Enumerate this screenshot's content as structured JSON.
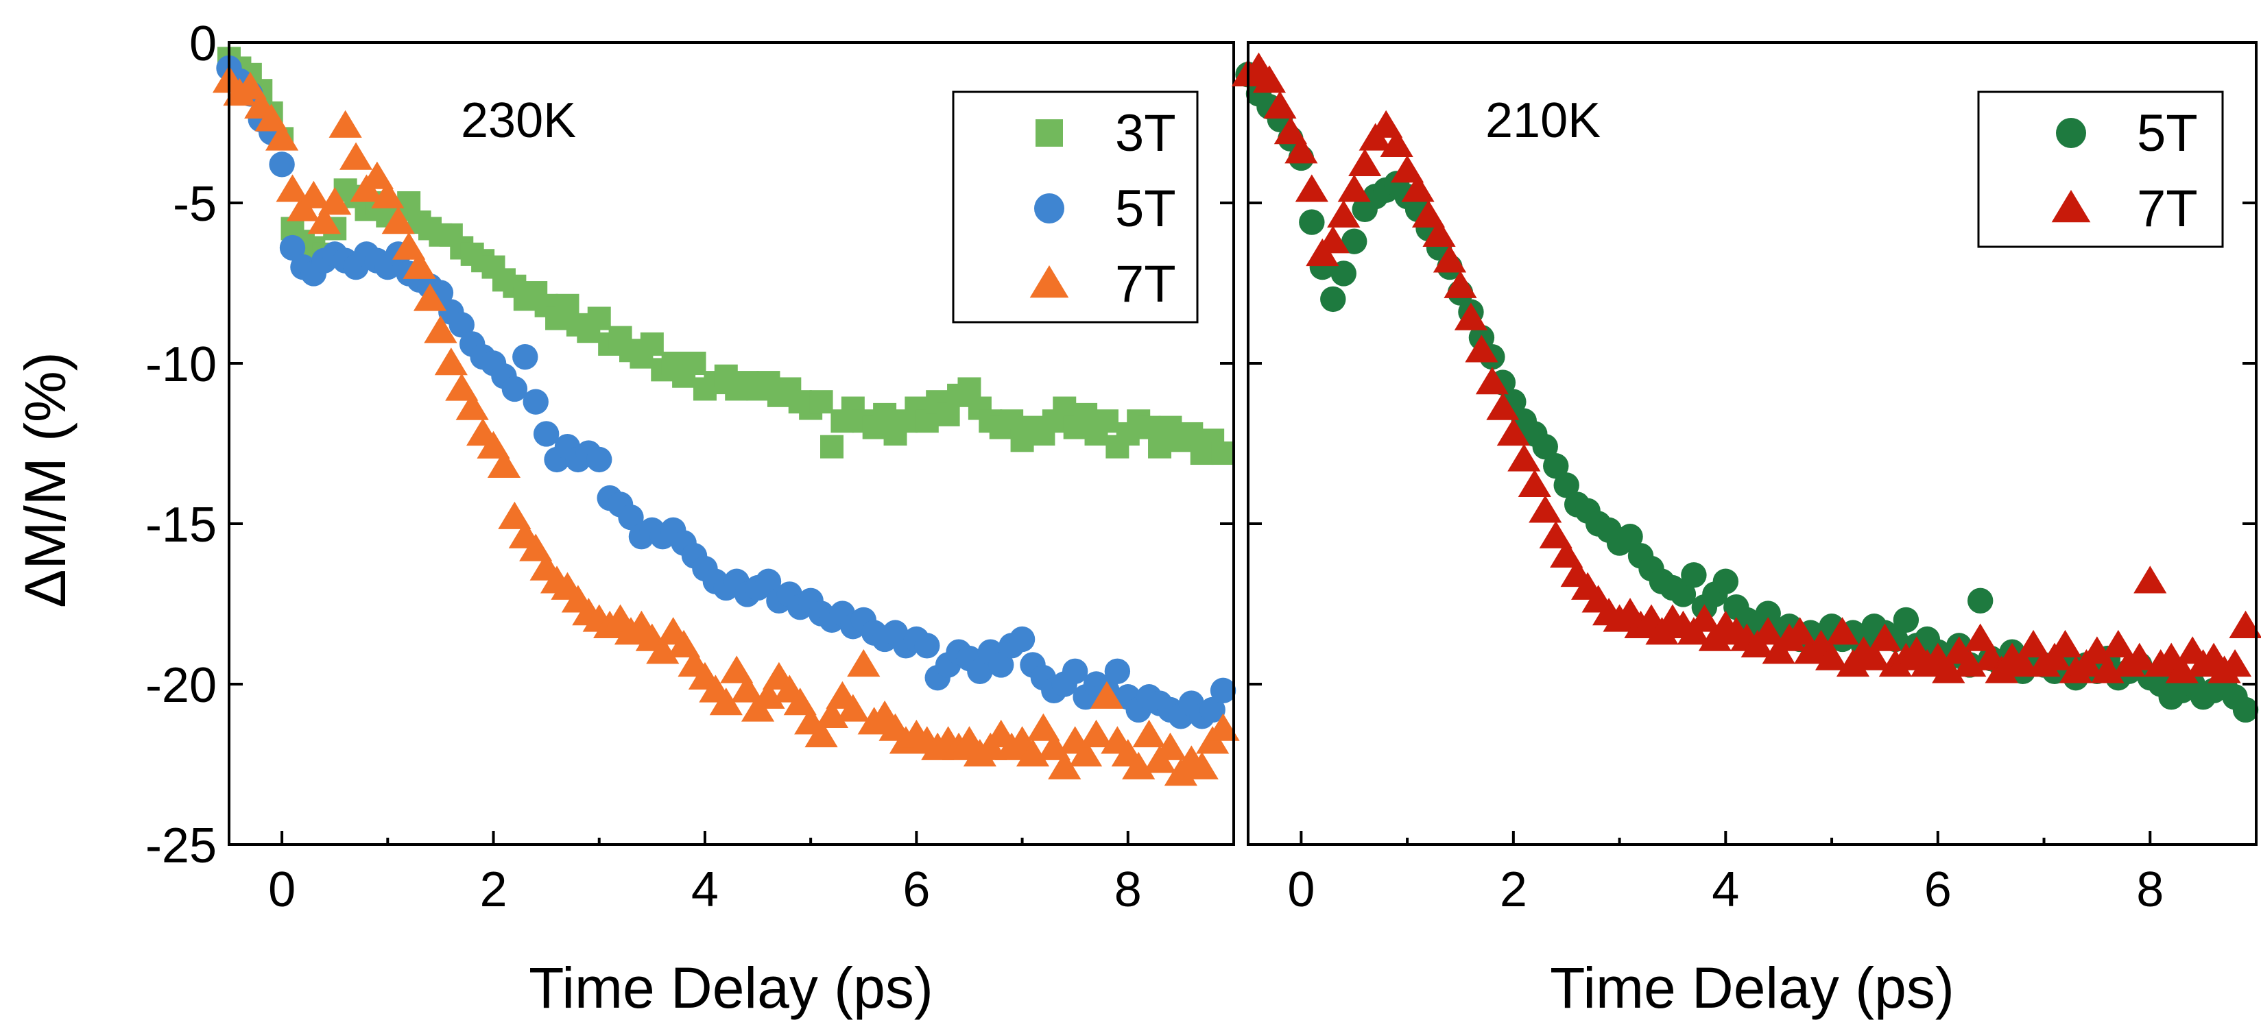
{
  "figure": {
    "shared_ylabel": "ΔM/M (%)"
  },
  "chart_data": [
    {
      "type": "scatter",
      "panel": "left",
      "title": "230K",
      "xlabel": "Time Delay (ps)",
      "ylabel": "ΔM/M (%)",
      "xlim": [
        -0.5,
        9.0
      ],
      "ylim": [
        -25,
        0
      ],
      "xticks": [
        0,
        2,
        4,
        6,
        8
      ],
      "xtick_labels": [
        "0",
        "2",
        "4",
        "6",
        "8"
      ],
      "yticks": [
        0,
        -5,
        -10,
        -15,
        -20,
        -25
      ],
      "ytick_labels": [
        "0",
        "-5",
        "-10",
        "-15",
        "-20",
        "-25"
      ],
      "legend_position": "top-right",
      "series": [
        {
          "name": "3T",
          "marker": "square",
          "color": "#72b95c",
          "x": [
            -0.5,
            -0.4,
            -0.3,
            -0.2,
            -0.1,
            0.0,
            0.1,
            0.2,
            0.3,
            0.4,
            0.5,
            0.6,
            0.7,
            0.8,
            0.9,
            1.0,
            1.1,
            1.2,
            1.3,
            1.4,
            1.5,
            1.6,
            1.7,
            1.8,
            1.9,
            2.0,
            2.1,
            2.2,
            2.3,
            2.4,
            2.5,
            2.6,
            2.7,
            2.8,
            2.9,
            3.0,
            3.1,
            3.2,
            3.3,
            3.4,
            3.5,
            3.6,
            3.7,
            3.8,
            3.9,
            4.0,
            4.1,
            4.2,
            4.3,
            4.4,
            4.5,
            4.6,
            4.7,
            4.8,
            4.9,
            5.0,
            5.1,
            5.2,
            5.3,
            5.4,
            5.5,
            5.6,
            5.7,
            5.8,
            5.9,
            6.0,
            6.1,
            6.2,
            6.3,
            6.4,
            6.5,
            6.6,
            6.7,
            6.8,
            6.9,
            7.0,
            7.1,
            7.2,
            7.3,
            7.4,
            7.5,
            7.6,
            7.7,
            7.8,
            7.9,
            8.0,
            8.1,
            8.2,
            8.3,
            8.4,
            8.5,
            8.6,
            8.7,
            8.8,
            8.9
          ],
          "y": [
            -0.5,
            -0.8,
            -1.0,
            -1.5,
            -2.2,
            -3.0,
            -5.8,
            -6.2,
            -6.4,
            -6.6,
            -5.8,
            -4.6,
            -4.8,
            -5.2,
            -5.0,
            -5.4,
            -5.2,
            -5.0,
            -5.6,
            -5.8,
            -6.0,
            -6.0,
            -6.4,
            -6.6,
            -6.8,
            -7.0,
            -7.4,
            -7.6,
            -8.0,
            -7.8,
            -8.2,
            -8.6,
            -8.2,
            -8.8,
            -9.0,
            -8.6,
            -9.4,
            -9.2,
            -9.6,
            -9.8,
            -9.4,
            -10.2,
            -10.0,
            -10.4,
            -10.0,
            -10.8,
            -10.6,
            -10.4,
            -10.8,
            -10.6,
            -10.8,
            -10.6,
            -11.0,
            -10.8,
            -11.2,
            -11.4,
            -11.2,
            -12.6,
            -11.8,
            -11.4,
            -11.8,
            -12.0,
            -11.6,
            -12.2,
            -11.8,
            -11.4,
            -11.8,
            -11.2,
            -11.6,
            -11.0,
            -10.8,
            -11.4,
            -11.8,
            -12.0,
            -11.8,
            -12.4,
            -12.0,
            -12.2,
            -11.8,
            -11.4,
            -12.0,
            -11.6,
            -12.2,
            -11.8,
            -12.6,
            -12.2,
            -11.8,
            -12.0,
            -12.6,
            -12.0,
            -12.4,
            -12.2,
            -12.8,
            -12.4,
            -12.8
          ]
        },
        {
          "name": "5T",
          "marker": "circle",
          "color": "#3f85d1",
          "x": [
            -0.5,
            -0.4,
            -0.3,
            -0.2,
            -0.1,
            0.0,
            0.1,
            0.2,
            0.3,
            0.4,
            0.5,
            0.6,
            0.7,
            0.8,
            0.9,
            1.0,
            1.1,
            1.2,
            1.3,
            1.4,
            1.5,
            1.6,
            1.7,
            1.8,
            1.9,
            2.0,
            2.1,
            2.2,
            2.3,
            2.4,
            2.5,
            2.6,
            2.7,
            2.8,
            2.9,
            3.0,
            3.1,
            3.2,
            3.3,
            3.4,
            3.5,
            3.6,
            3.7,
            3.8,
            3.9,
            4.0,
            4.1,
            4.2,
            4.3,
            4.4,
            4.5,
            4.6,
            4.7,
            4.8,
            4.9,
            5.0,
            5.1,
            5.2,
            5.3,
            5.4,
            5.5,
            5.6,
            5.7,
            5.8,
            5.9,
            6.0,
            6.1,
            6.2,
            6.3,
            6.4,
            6.5,
            6.6,
            6.7,
            6.8,
            6.9,
            7.0,
            7.1,
            7.2,
            7.3,
            7.4,
            7.5,
            7.6,
            7.7,
            7.8,
            7.9,
            8.0,
            8.1,
            8.2,
            8.3,
            8.4,
            8.5,
            8.6,
            8.7,
            8.8,
            8.9
          ],
          "y": [
            -0.8,
            -1.2,
            -1.6,
            -2.4,
            -2.8,
            -3.8,
            -6.4,
            -7.0,
            -7.2,
            -6.8,
            -6.6,
            -6.8,
            -7.0,
            -6.6,
            -6.8,
            -7.0,
            -6.6,
            -7.2,
            -7.4,
            -7.6,
            -7.8,
            -8.4,
            -8.8,
            -9.4,
            -9.8,
            -10.0,
            -10.4,
            -10.8,
            -9.8,
            -11.2,
            -12.2,
            -13.0,
            -12.6,
            -13.0,
            -12.8,
            -13.0,
            -14.2,
            -14.4,
            -14.8,
            -15.4,
            -15.2,
            -15.4,
            -15.2,
            -15.6,
            -16.0,
            -16.4,
            -16.8,
            -17.0,
            -16.8,
            -17.2,
            -17.0,
            -16.8,
            -17.4,
            -17.2,
            -17.6,
            -17.4,
            -17.8,
            -18.0,
            -17.8,
            -18.2,
            -18.0,
            -18.4,
            -18.6,
            -18.4,
            -18.8,
            -18.6,
            -18.8,
            -19.8,
            -19.4,
            -19.0,
            -19.2,
            -19.6,
            -19.0,
            -19.4,
            -18.8,
            -18.6,
            -19.4,
            -19.8,
            -20.2,
            -20.0,
            -19.6,
            -20.4,
            -20.0,
            -20.2,
            -19.6,
            -20.4,
            -20.8,
            -20.4,
            -20.6,
            -20.8,
            -21.0,
            -20.6,
            -21.0,
            -20.8,
            -20.2
          ]
        },
        {
          "name": "7T",
          "marker": "triangle",
          "color": "#f27227",
          "x": [
            -0.5,
            -0.4,
            -0.3,
            -0.2,
            -0.1,
            0.0,
            0.1,
            0.2,
            0.3,
            0.4,
            0.5,
            0.6,
            0.7,
            0.8,
            0.9,
            1.0,
            1.1,
            1.2,
            1.3,
            1.4,
            1.5,
            1.6,
            1.7,
            1.8,
            1.9,
            2.0,
            2.1,
            2.2,
            2.3,
            2.4,
            2.5,
            2.6,
            2.7,
            2.8,
            2.9,
            3.0,
            3.1,
            3.2,
            3.3,
            3.4,
            3.5,
            3.6,
            3.7,
            3.8,
            3.9,
            4.0,
            4.1,
            4.2,
            4.3,
            4.4,
            4.5,
            4.6,
            4.7,
            4.8,
            4.9,
            5.0,
            5.1,
            5.2,
            5.3,
            5.4,
            5.5,
            5.6,
            5.7,
            5.8,
            5.9,
            6.0,
            6.1,
            6.2,
            6.3,
            6.4,
            6.5,
            6.6,
            6.7,
            6.8,
            6.9,
            7.0,
            7.1,
            7.2,
            7.3,
            7.4,
            7.5,
            7.6,
            7.7,
            7.8,
            7.9,
            8.0,
            8.1,
            8.2,
            8.3,
            8.4,
            8.5,
            8.6,
            8.7,
            8.8,
            8.9
          ],
          "y": [
            -1.2,
            -1.6,
            -1.4,
            -2.0,
            -2.4,
            -3.0,
            -4.6,
            -5.2,
            -4.8,
            -5.6,
            -5.0,
            -2.6,
            -3.6,
            -4.6,
            -4.2,
            -4.8,
            -5.6,
            -6.4,
            -7.0,
            -8.0,
            -9.0,
            -10.0,
            -10.8,
            -11.4,
            -12.2,
            -12.6,
            -13.2,
            -14.8,
            -15.4,
            -15.8,
            -16.4,
            -16.8,
            -17.0,
            -17.4,
            -17.8,
            -18.0,
            -18.2,
            -18.0,
            -18.4,
            -18.2,
            -18.6,
            -19.0,
            -18.4,
            -18.8,
            -19.4,
            -19.8,
            -20.2,
            -20.6,
            -19.6,
            -20.2,
            -20.8,
            -20.4,
            -19.8,
            -20.2,
            -20.6,
            -21.2,
            -21.6,
            -21.0,
            -20.4,
            -20.8,
            -19.4,
            -21.2,
            -21.0,
            -21.4,
            -21.8,
            -21.6,
            -21.8,
            -22.0,
            -21.8,
            -22.0,
            -21.8,
            -22.2,
            -22.0,
            -21.6,
            -22.0,
            -21.8,
            -22.2,
            -21.4,
            -22.0,
            -22.6,
            -21.8,
            -22.2,
            -21.6,
            -20.4,
            -21.8,
            -22.2,
            -22.6,
            -21.6,
            -22.4,
            -22.0,
            -22.8,
            -22.4,
            -22.6,
            -21.8,
            -21.4
          ]
        }
      ]
    },
    {
      "type": "scatter",
      "panel": "right",
      "title": "210K",
      "xlabel": "Time Delay (ps)",
      "ylabel": "",
      "xlim": [
        -0.5,
        9.0
      ],
      "ylim": [
        -25,
        0
      ],
      "xticks": [
        0,
        2,
        4,
        6,
        8
      ],
      "xtick_labels": [
        "0",
        "2",
        "4",
        "6",
        "8"
      ],
      "yticks": [
        0,
        -5,
        -10,
        -15,
        -20,
        -25
      ],
      "ytick_labels": [],
      "legend_position": "top-right",
      "series": [
        {
          "name": "5T",
          "marker": "circle",
          "color": "#1e7a3f",
          "x": [
            -0.5,
            -0.4,
            -0.3,
            -0.2,
            -0.1,
            0.0,
            0.1,
            0.2,
            0.3,
            0.4,
            0.5,
            0.6,
            0.7,
            0.8,
            0.9,
            1.0,
            1.1,
            1.2,
            1.3,
            1.4,
            1.5,
            1.6,
            1.7,
            1.8,
            1.9,
            2.0,
            2.1,
            2.2,
            2.3,
            2.4,
            2.5,
            2.6,
            2.7,
            2.8,
            2.9,
            3.0,
            3.1,
            3.2,
            3.3,
            3.4,
            3.5,
            3.6,
            3.7,
            3.8,
            3.9,
            4.0,
            4.1,
            4.2,
            4.3,
            4.4,
            4.5,
            4.6,
            4.7,
            4.8,
            4.9,
            5.0,
            5.1,
            5.2,
            5.3,
            5.4,
            5.5,
            5.6,
            5.7,
            5.8,
            5.9,
            6.0,
            6.1,
            6.2,
            6.3,
            6.4,
            6.5,
            6.6,
            6.7,
            6.8,
            6.9,
            7.0,
            7.1,
            7.2,
            7.3,
            7.4,
            7.5,
            7.6,
            7.7,
            7.8,
            7.9,
            8.0,
            8.1,
            8.2,
            8.3,
            8.4,
            8.5,
            8.6,
            8.7,
            8.8,
            8.9
          ],
          "y": [
            -1.0,
            -1.6,
            -2.0,
            -2.4,
            -3.0,
            -3.6,
            -5.6,
            -7.0,
            -8.0,
            -7.2,
            -6.2,
            -5.2,
            -4.8,
            -4.6,
            -4.4,
            -4.8,
            -5.2,
            -5.8,
            -6.4,
            -7.0,
            -7.8,
            -8.4,
            -9.2,
            -9.8,
            -10.6,
            -11.2,
            -11.8,
            -12.2,
            -12.6,
            -13.2,
            -13.8,
            -14.4,
            -14.6,
            -15.0,
            -15.2,
            -15.6,
            -15.4,
            -16.0,
            -16.4,
            -16.8,
            -17.0,
            -17.2,
            -16.6,
            -17.6,
            -17.2,
            -16.8,
            -17.6,
            -18.0,
            -18.2,
            -17.8,
            -18.4,
            -18.2,
            -18.6,
            -18.4,
            -18.8,
            -18.2,
            -18.6,
            -18.4,
            -18.8,
            -18.2,
            -18.4,
            -18.6,
            -18.0,
            -18.8,
            -18.6,
            -19.0,
            -19.2,
            -18.8,
            -19.4,
            -17.4,
            -19.2,
            -19.4,
            -19.0,
            -19.6,
            -19.2,
            -19.4,
            -19.6,
            -19.2,
            -19.8,
            -19.4,
            -19.6,
            -19.2,
            -19.8,
            -19.6,
            -19.4,
            -19.8,
            -20.0,
            -20.4,
            -20.2,
            -20.0,
            -20.4,
            -20.2,
            -20.0,
            -20.4,
            -20.8
          ]
        },
        {
          "name": "7T",
          "marker": "triangle",
          "color": "#c81a0a",
          "x": [
            -0.5,
            -0.4,
            -0.3,
            -0.2,
            -0.1,
            0.0,
            0.1,
            0.2,
            0.3,
            0.4,
            0.5,
            0.6,
            0.7,
            0.8,
            0.9,
            1.0,
            1.1,
            1.2,
            1.3,
            1.4,
            1.5,
            1.6,
            1.7,
            1.8,
            1.9,
            2.0,
            2.1,
            2.2,
            2.3,
            2.4,
            2.5,
            2.6,
            2.7,
            2.8,
            2.9,
            3.0,
            3.1,
            3.2,
            3.3,
            3.4,
            3.5,
            3.6,
            3.7,
            3.8,
            3.9,
            4.0,
            4.1,
            4.2,
            4.3,
            4.4,
            4.5,
            4.6,
            4.7,
            4.8,
            4.9,
            5.0,
            5.1,
            5.2,
            5.3,
            5.4,
            5.5,
            5.6,
            5.7,
            5.8,
            5.9,
            6.0,
            6.1,
            6.2,
            6.3,
            6.4,
            6.5,
            6.6,
            6.7,
            6.8,
            6.9,
            7.0,
            7.1,
            7.2,
            7.3,
            7.4,
            7.5,
            7.6,
            7.7,
            7.8,
            7.9,
            8.0,
            8.1,
            8.2,
            8.3,
            8.4,
            8.5,
            8.6,
            8.7,
            8.8,
            8.9
          ],
          "y": [
            -1.0,
            -0.8,
            -1.2,
            -2.0,
            -2.8,
            -3.4,
            -4.6,
            -6.6,
            -6.2,
            -5.4,
            -4.6,
            -3.8,
            -3.0,
            -2.6,
            -3.2,
            -4.0,
            -4.6,
            -5.4,
            -6.0,
            -6.8,
            -7.6,
            -8.6,
            -9.6,
            -10.6,
            -11.4,
            -12.2,
            -13.0,
            -13.8,
            -14.6,
            -15.4,
            -16.0,
            -16.6,
            -17.0,
            -17.4,
            -17.8,
            -18.0,
            -17.8,
            -18.2,
            -18.0,
            -18.4,
            -18.0,
            -18.2,
            -18.4,
            -18.0,
            -18.6,
            -18.2,
            -18.4,
            -18.6,
            -18.8,
            -18.4,
            -19.0,
            -18.6,
            -18.4,
            -19.0,
            -18.8,
            -19.2,
            -18.4,
            -19.4,
            -19.0,
            -19.2,
            -18.6,
            -19.4,
            -19.2,
            -19.0,
            -19.4,
            -19.2,
            -19.6,
            -19.0,
            -19.4,
            -18.6,
            -19.2,
            -19.6,
            -19.2,
            -19.4,
            -18.8,
            -19.4,
            -19.2,
            -18.8,
            -19.6,
            -19.4,
            -19.0,
            -19.6,
            -18.8,
            -19.4,
            -19.2,
            -16.8,
            -19.4,
            -19.2,
            -19.6,
            -19.0,
            -19.4,
            -19.2,
            -19.6,
            -19.4,
            -18.2
          ]
        }
      ]
    }
  ]
}
